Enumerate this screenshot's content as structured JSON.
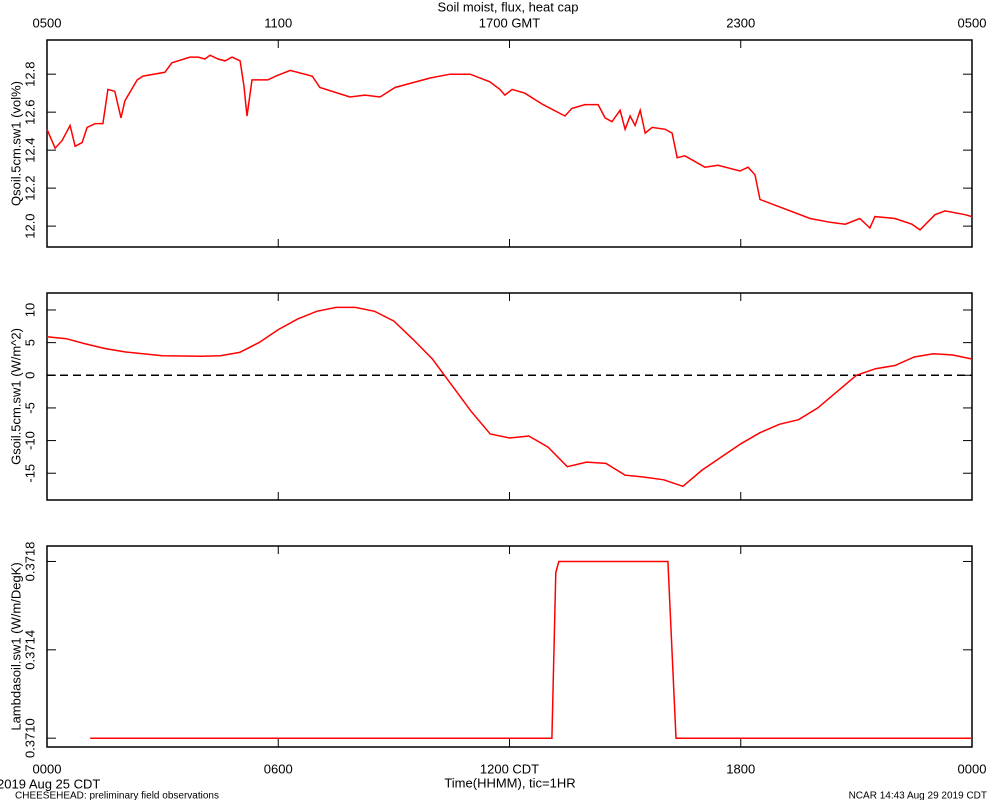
{
  "chart_data": [
    {
      "type": "line",
      "title": "Soil moist, flux, heat cap",
      "ylabel": "Qsoil.5cm.sw1 (vol%)",
      "color": "#ff0000",
      "xlim": [
        0,
        24
      ],
      "ylim": [
        11.89,
        12.98
      ],
      "yticks": [
        {
          "value": 12,
          "label": "12.0"
        },
        12.2,
        12.4,
        12.6,
        12.8
      ],
      "top_xticks": [
        {
          "value": 0,
          "label": "0500"
        },
        {
          "value": 6,
          "label": "1100"
        },
        {
          "value": 12,
          "label": "1700 GMT"
        },
        {
          "value": 18,
          "label": "2300"
        },
        {
          "value": 24,
          "label": "0500"
        }
      ],
      "x": [
        0,
        0.21,
        0.39,
        0.6,
        0.73,
        0.91,
        1.04,
        1.25,
        1.45,
        1.58,
        1.76,
        1.92,
        2.02,
        2.34,
        2.49,
        3.06,
        3.24,
        3.71,
        3.92,
        4.1,
        4.23,
        4.44,
        4.62,
        4.8,
        5.01,
        5.11,
        5.19,
        5.32,
        5.73,
        5.94,
        6.31,
        6.88,
        7.08,
        7.86,
        8.25,
        8.64,
        9.03,
        9.94,
        10.46,
        10.98,
        11.49,
        11.75,
        11.88,
        12.07,
        12.4,
        12.87,
        13.44,
        13.62,
        13.96,
        14.3,
        14.48,
        14.66,
        14.87,
        15,
        15.13,
        15.26,
        15.39,
        15.52,
        15.7,
        16.04,
        16.22,
        16.35,
        16.55,
        17.07,
        17.41,
        17.98,
        18.19,
        18.37,
        18.5,
        18.89,
        19.8,
        20.32,
        20.71,
        21.09,
        21.35,
        21.48,
        22,
        22.44,
        22.65,
        23.04,
        23.3,
        23.82,
        24
      ],
      "values": [
        12.51,
        12.41,
        12.45,
        12.53,
        12.42,
        12.44,
        12.52,
        12.54,
        12.54,
        12.72,
        12.71,
        12.57,
        12.66,
        12.77,
        12.79,
        12.81,
        12.86,
        12.89,
        12.89,
        12.88,
        12.9,
        12.88,
        12.87,
        12.89,
        12.87,
        12.74,
        12.58,
        12.77,
        12.77,
        12.79,
        12.82,
        12.79,
        12.73,
        12.68,
        12.69,
        12.68,
        12.73,
        12.78,
        12.8,
        12.8,
        12.76,
        12.72,
        12.69,
        12.72,
        12.7,
        12.64,
        12.58,
        12.62,
        12.64,
        12.64,
        12.57,
        12.55,
        12.61,
        12.51,
        12.58,
        12.53,
        12.61,
        12.49,
        12.52,
        12.51,
        12.49,
        12.36,
        12.37,
        12.31,
        12.32,
        12.29,
        12.31,
        12.27,
        12.14,
        12.11,
        12.04,
        12.02,
        12.01,
        12.04,
        11.99,
        12.05,
        12.04,
        12.01,
        11.98,
        12.06,
        12.08,
        12.06,
        12.05
      ]
    },
    {
      "type": "line",
      "ylabel": "Gsoil.5cm.sw1 (W/m^2)",
      "color": "#ff0000",
      "xlim": [
        0,
        24
      ],
      "ylim": [
        -19.1,
        12.6
      ],
      "yticks": [
        -15,
        -10,
        -5,
        0,
        5,
        10
      ],
      "reference_line": 0,
      "x": [
        0,
        0.5,
        1,
        1.5,
        2,
        3,
        4,
        4.5,
        5,
        5.5,
        6,
        6.5,
        7,
        7.5,
        8,
        8.5,
        9,
        9.5,
        10,
        10.5,
        11,
        11.5,
        12,
        12.5,
        13,
        13.5,
        14,
        14.5,
        15,
        15.5,
        16,
        16.5,
        17,
        17.5,
        18,
        18.5,
        19,
        19.5,
        20,
        20.5,
        21,
        21.5,
        22,
        22.5,
        23,
        23.5,
        24
      ],
      "values": [
        5.9,
        5.6,
        4.8,
        4.1,
        3.6,
        3,
        2.9,
        3,
        3.5,
        5,
        7,
        8.6,
        9.8,
        10.4,
        10.4,
        9.8,
        8.3,
        5.5,
        2.5,
        -1.5,
        -5.5,
        -9,
        -9.6,
        -9.3,
        -11,
        -14,
        -13.3,
        -13.5,
        -15.3,
        -15.6,
        -16,
        -17,
        -14.5,
        -12.5,
        -10.5,
        -8.8,
        -7.5,
        -6.8,
        -5,
        -2.5,
        0,
        1,
        1.5,
        2.8,
        3.3,
        3.1,
        2.5
      ]
    },
    {
      "type": "line",
      "ylabel": "Lambdasoil.sw1 (W/m/DegK)",
      "xlabel": "Time(HHMM), tic=1HR",
      "color": "#ff0000",
      "xlim": [
        0,
        24
      ],
      "ylim": [
        0.37096,
        0.37187
      ],
      "yticks": [
        {
          "value": 0.371,
          "label": "0.3710"
        },
        0.3714,
        0.3718
      ],
      "xticks": [
        {
          "value": 0,
          "label": "0000"
        },
        {
          "value": 6,
          "label": "0600"
        },
        {
          "value": 12,
          "label": "1200 CDT"
        },
        {
          "value": 18,
          "label": "1800"
        },
        {
          "value": 24,
          "label": "0000"
        }
      ],
      "x": [
        1.12,
        13.1,
        13.2,
        13.28,
        16.11,
        16.32,
        24
      ],
      "values": [
        0.371,
        0.371,
        0.37175,
        0.3718,
        0.3718,
        0.371,
        0.371
      ]
    }
  ],
  "footer": {
    "date": "2019 Aug 25 CDT",
    "project": "CHEESEHEAD: preliminary field observations",
    "stamp": "NCAR 14:43 Aug 29 2019 CDT"
  }
}
